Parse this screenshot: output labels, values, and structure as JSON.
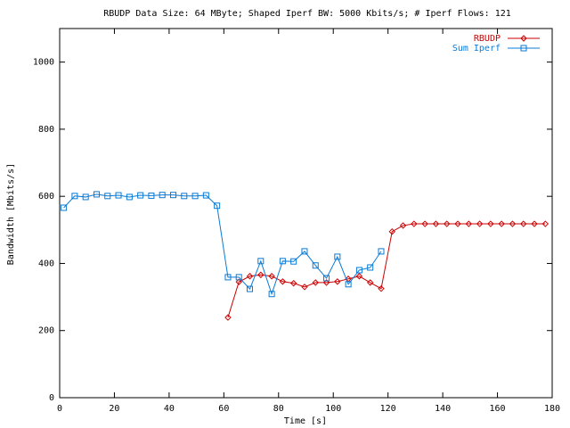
{
  "chart_data": {
    "type": "line",
    "title": "RBUDP Data Size: 64 MByte; Shaped Iperf BW: 5000 Kbits/s; # Iperf Flows: 121",
    "x_label": "Time [s]",
    "y_label": "Bandwidth [Mbits/s]",
    "xlim": [
      0,
      180
    ],
    "ylim": [
      0,
      1100
    ],
    "xticks": [
      0,
      20,
      40,
      60,
      80,
      100,
      120,
      140,
      160,
      180
    ],
    "yticks": [
      0,
      200,
      400,
      600,
      800,
      1000
    ],
    "legend": "top-right",
    "series": [
      {
        "name": "RBUDP",
        "color": "#cc0000",
        "marker": "diamond",
        "x": [
          61.5,
          65.5,
          69.5,
          73.5,
          77.5,
          81.5,
          85.5,
          89.5,
          93.5,
          97.5,
          101.5,
          105.5,
          109.5,
          113.5,
          117.5,
          121.5,
          125.5,
          129.5,
          133.5,
          137.5,
          141.5,
          145.5,
          149.5,
          153.5,
          157.5,
          161.5,
          165.5,
          169.5,
          173.5,
          177.5
        ],
        "values": [
          239,
          345,
          362,
          366,
          362,
          346,
          341,
          330,
          343,
          343,
          346,
          354,
          362,
          343,
          325,
          495,
          513,
          518,
          518,
          518,
          518,
          518,
          518,
          518,
          518,
          518,
          518,
          518,
          518,
          518
        ]
      },
      {
        "name": "Sum Iperf",
        "color": "#0a7ad4",
        "marker": "square",
        "x": [
          1.5,
          5.5,
          9.5,
          13.5,
          17.5,
          21.5,
          25.5,
          29.5,
          33.5,
          37.5,
          41.5,
          45.5,
          49.5,
          53.5,
          57.5,
          61.5,
          65.5,
          69.5,
          73.5,
          77.5,
          81.5,
          85.5,
          89.5,
          93.5,
          97.5,
          101.5,
          105.5,
          109.5,
          113.5,
          117.5
        ],
        "values": [
          566,
          601,
          598,
          606,
          601,
          603,
          598,
          603,
          602,
          604,
          604,
          601,
          601,
          603,
          572,
          359,
          359,
          324,
          407,
          309,
          407,
          406,
          436,
          394,
          356,
          420,
          338,
          380,
          388,
          436
        ]
      }
    ]
  }
}
